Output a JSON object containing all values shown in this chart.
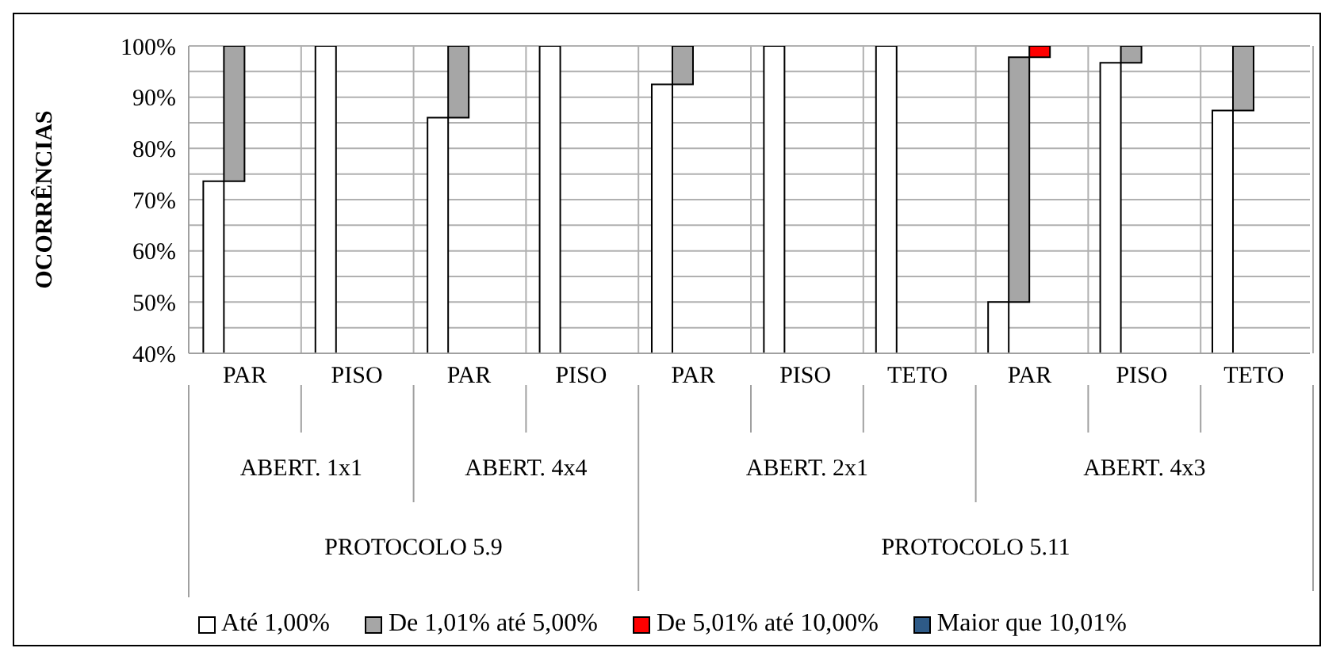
{
  "chart_data": {
    "type": "bar",
    "ylabel": "OCORRÊNCIAS",
    "categories": [
      "PAR",
      "PISO",
      "PAR",
      "PISO",
      "PAR",
      "PISO",
      "TETO",
      "PAR",
      "PISO",
      "TETO"
    ],
    "series": [
      {
        "name": "Até 1,00%",
        "color": "#ffffff",
        "values": [
          73.6,
          100,
          86,
          100,
          92.5,
          100,
          100,
          50,
          96.7,
          87.4
        ]
      },
      {
        "name": "De 1,01% até 5,00%",
        "color": "#a6a6a6",
        "base": [
          73.6,
          null,
          86,
          null,
          92.5,
          null,
          null,
          50,
          96.7,
          87.4
        ],
        "values": [
          26.4,
          null,
          14,
          null,
          7.5,
          null,
          null,
          47.8,
          3.3,
          12.6
        ]
      },
      {
        "name": "De 5,01% até 10,00%",
        "color": "#ff0000",
        "base": [
          null,
          null,
          null,
          null,
          null,
          null,
          null,
          97.8,
          null,
          null
        ],
        "values": [
          null,
          null,
          null,
          null,
          null,
          null,
          null,
          2.2,
          null,
          null
        ]
      },
      {
        "name": "Maior que 10,01%",
        "color": "#2e5a87",
        "values": [
          null,
          null,
          null,
          null,
          null,
          null,
          null,
          null,
          null,
          null
        ]
      }
    ],
    "ylim": [
      40,
      100
    ],
    "yticks": [
      {
        "value": 40,
        "label": "40%"
      },
      {
        "value": 45,
        "label": null
      },
      {
        "value": 50,
        "label": "50%"
      },
      {
        "value": 55,
        "label": null
      },
      {
        "value": 60,
        "label": "60%"
      },
      {
        "value": 65,
        "label": null
      },
      {
        "value": 70,
        "label": "70%"
      },
      {
        "value": 75,
        "label": null
      },
      {
        "value": 80,
        "label": "80%"
      },
      {
        "value": 85,
        "label": null
      },
      {
        "value": 90,
        "label": "90%"
      },
      {
        "value": 95,
        "label": null
      },
      {
        "value": 100,
        "label": "100%"
      }
    ],
    "annotations": [
      "ABERT. 1x1",
      "ABERT. 4x4",
      "ABERT. 2x1",
      "ABERT. 4x3",
      "PROTOCOLO 5.9",
      "PROTOCOLO 5.11"
    ],
    "grid": true,
    "legend": "bottom"
  }
}
